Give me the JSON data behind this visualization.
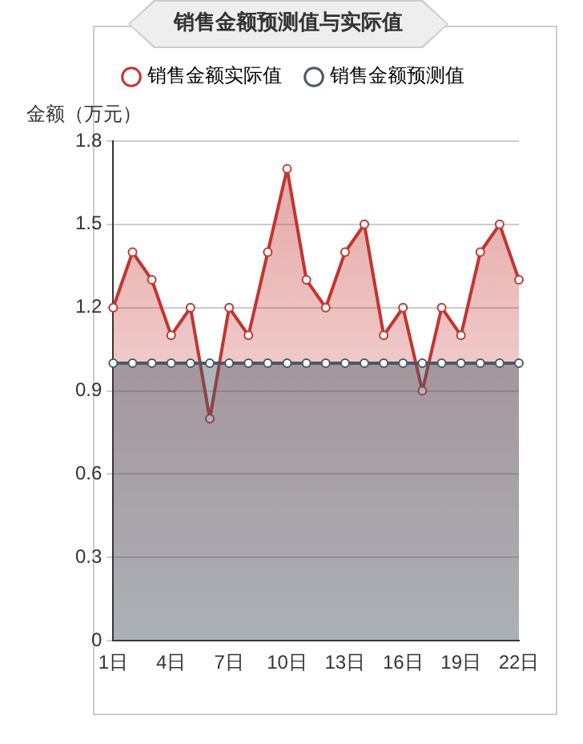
{
  "chart_data": {
    "type": "area",
    "title": "销售金额预测值与实际值",
    "ylabel": "金额（万元）",
    "categories": [
      "1日",
      null,
      null,
      "4日",
      null,
      null,
      "7日",
      null,
      null,
      "10日",
      null,
      null,
      "13日",
      null,
      null,
      "16日",
      null,
      null,
      "19日",
      null,
      null,
      "22日"
    ],
    "series": [
      {
        "name": "销售金额实际值",
        "color": "#c23531",
        "values": [
          1.2,
          1.4,
          1.3,
          1.1,
          1.2,
          0.8,
          1.2,
          1.1,
          1.4,
          1.7,
          1.3,
          1.2,
          1.4,
          1.5,
          1.1,
          1.2,
          0.9,
          1.2,
          1.1,
          1.4,
          1.5,
          1.3
        ]
      },
      {
        "name": "销售金额预测值",
        "color": "#4a5866",
        "values": [
          1,
          1,
          1,
          1,
          1,
          1,
          1,
          1,
          1,
          1,
          1,
          1,
          1,
          1,
          1,
          1,
          1,
          1,
          1,
          1,
          1,
          1
        ]
      }
    ],
    "ylim": [
      0,
      1.8
    ],
    "yticks": [
      0,
      0.3,
      0.6,
      0.9,
      1.2,
      1.5,
      1.8
    ],
    "grid": "y",
    "legend": "top",
    "marker": "circle",
    "line_style": "solid"
  }
}
